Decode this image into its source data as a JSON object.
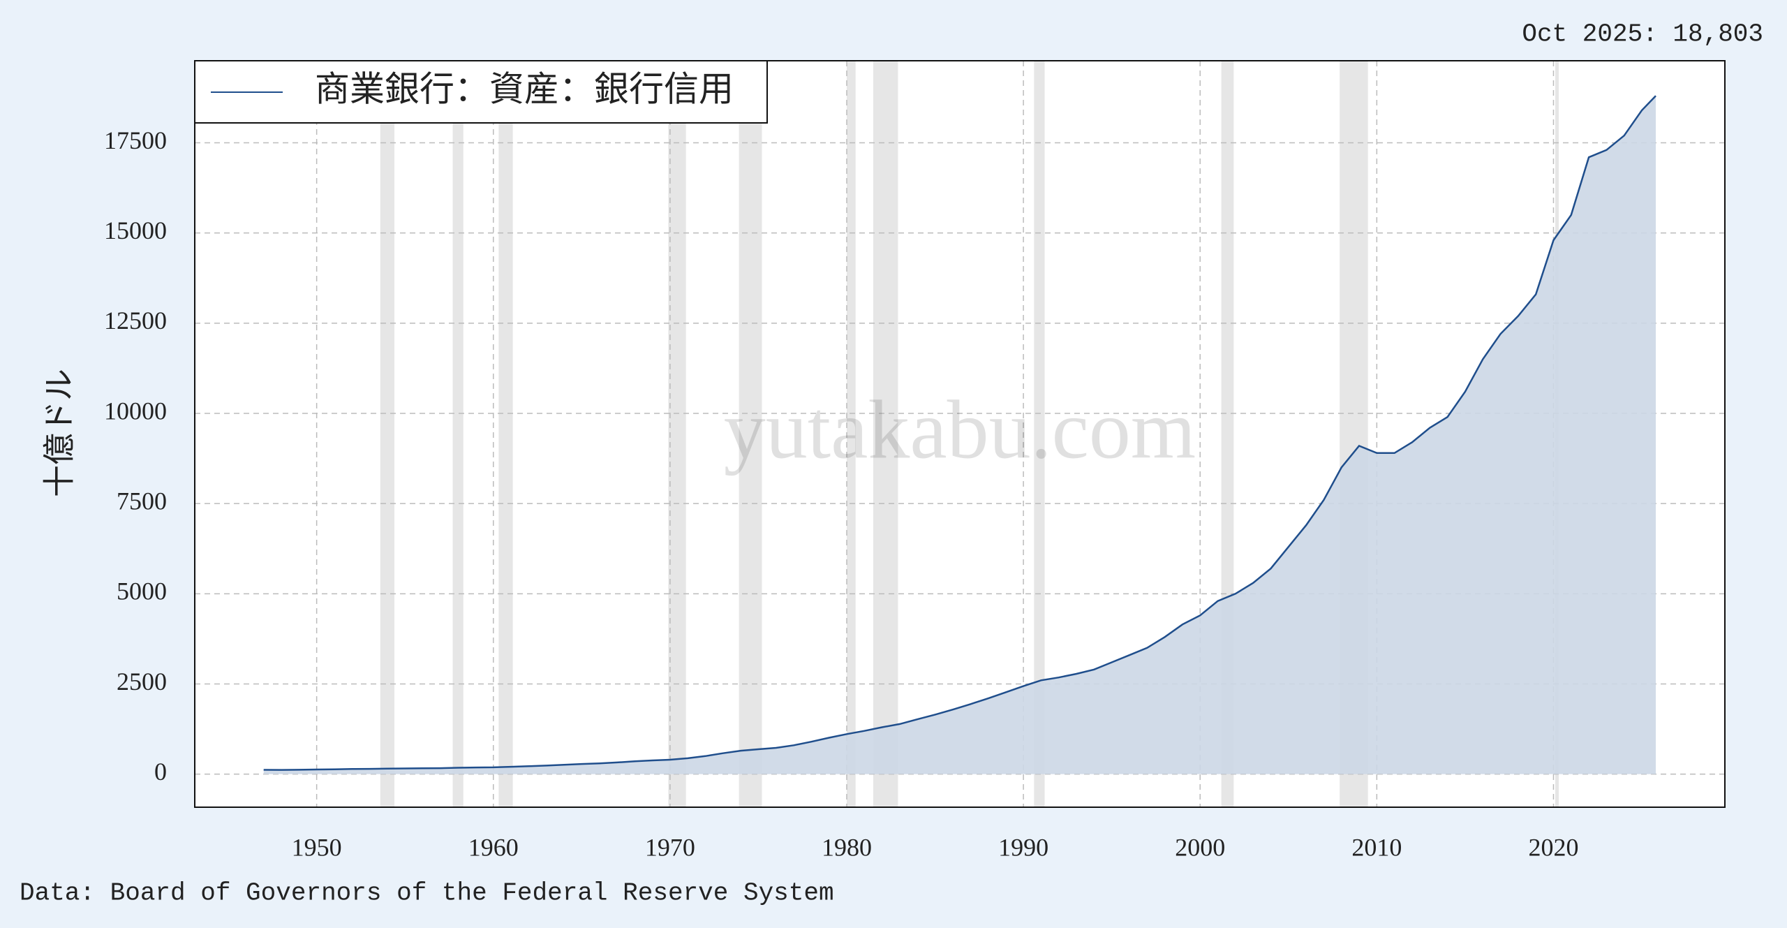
{
  "chart_data": {
    "type": "area",
    "annotation": "Oct 2025: 18,803",
    "y_label": "十億ドル",
    "watermark": "yutakabu.com",
    "source": "Data: Board of Governors of the Federal Reserve System",
    "legend_position": "upper left",
    "grid": true,
    "xlim": [
      1943.1,
      2029.7
    ],
    "ylim": [
      -916,
      19774
    ],
    "xticks": [
      1950,
      1960,
      1970,
      1980,
      1990,
      2000,
      2010,
      2020
    ],
    "yticks": [
      0,
      2500,
      5000,
      7500,
      10000,
      12500,
      15000,
      17500
    ],
    "shaded_color": "#e6e6e6",
    "shaded_periods": [
      [
        1953.6,
        1954.4
      ],
      [
        1957.7,
        1958.3
      ],
      [
        1960.3,
        1961.1
      ],
      [
        1969.9,
        1970.9
      ],
      [
        1973.9,
        1975.2
      ],
      [
        1980.0,
        1980.5
      ],
      [
        1981.5,
        1982.9
      ],
      [
        1990.6,
        1991.2
      ],
      [
        2001.2,
        2001.9
      ],
      [
        2007.9,
        2009.5
      ],
      [
        2020.1,
        2020.3
      ]
    ],
    "x": [
      1947,
      1948,
      1949,
      1950,
      1951,
      1952,
      1953,
      1954,
      1955,
      1956,
      1957,
      1958,
      1959,
      1960,
      1961,
      1962,
      1963,
      1964,
      1965,
      1966,
      1967,
      1968,
      1969,
      1970,
      1971,
      1972,
      1973,
      1974,
      1975,
      1976,
      1977,
      1978,
      1979,
      1980,
      1981,
      1982,
      1983,
      1984,
      1985,
      1986,
      1987,
      1988,
      1989,
      1990,
      1991,
      1992,
      1993,
      1994,
      1995,
      1996,
      1997,
      1998,
      1999,
      2000,
      2001,
      2002,
      2003,
      2004,
      2005,
      2006,
      2007,
      2008,
      2009,
      2010,
      2011,
      2012,
      2013,
      2014,
      2015,
      2016,
      2017,
      2018,
      2019,
      2020,
      2021,
      2022,
      2023,
      2024,
      2025,
      2025.79
    ],
    "series": [
      {
        "name": "商業銀行：資産：銀行信用",
        "color": "#1f4e8c",
        "fill": "#ccd7e6",
        "values": [
          120,
          118,
          122,
          130,
          135,
          142,
          146,
          152,
          158,
          162,
          166,
          178,
          185,
          190,
          205,
          220,
          238,
          258,
          282,
          300,
          325,
          355,
          380,
          400,
          440,
          500,
          580,
          650,
          690,
          730,
          800,
          900,
          1010,
          1110,
          1200,
          1300,
          1390,
          1520,
          1650,
          1790,
          1940,
          2100,
          2270,
          2440,
          2600,
          2680,
          2780,
          2900,
          3100,
          3300,
          3500,
          3800,
          4150,
          4400,
          4800,
          5000,
          5300,
          5700,
          6300,
          6900,
          7600,
          8500,
          9100,
          8900,
          8900,
          9200,
          9600,
          9900,
          10600,
          11500,
          12200,
          12700,
          13300,
          14800,
          15500,
          17100,
          17300,
          17700,
          18400,
          18803
        ]
      }
    ]
  }
}
